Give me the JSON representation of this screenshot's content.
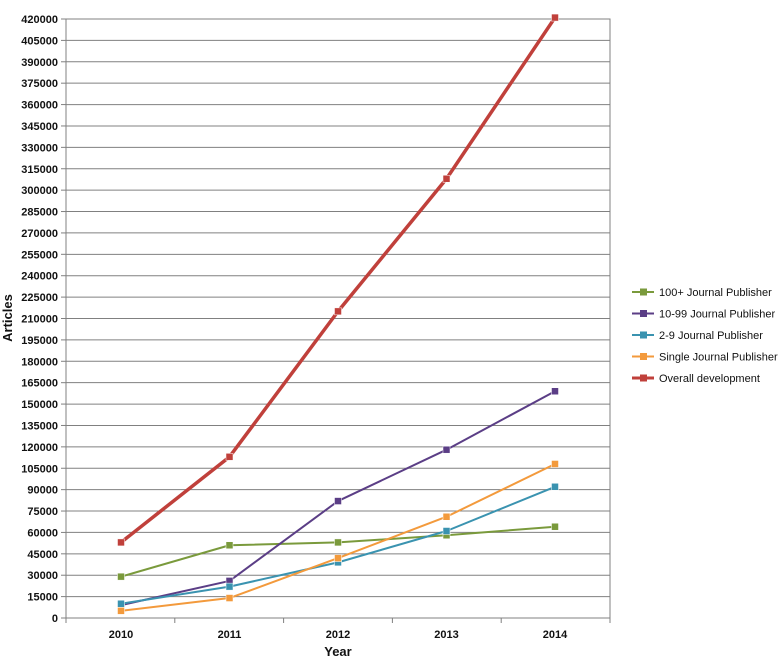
{
  "chart_data": {
    "type": "line",
    "xlabel": "Year",
    "ylabel": "Articles",
    "categories": [
      "2010",
      "2011",
      "2012",
      "2013",
      "2014"
    ],
    "ylim": [
      0,
      420000
    ],
    "ytick_step": 15000,
    "grid": true,
    "legend_position": "right",
    "series": [
      {
        "name": "100+ Journal  Publisher",
        "color": "#7a9a3c",
        "values": [
          29000,
          51000,
          53000,
          58000,
          64000
        ]
      },
      {
        "name": "10-99 Journal  Publisher",
        "color": "#5b3e86",
        "values": [
          9000,
          26000,
          82000,
          118000,
          159000
        ]
      },
      {
        "name": "2-9 Journal  Publisher",
        "color": "#3a93b0",
        "values": [
          10000,
          22000,
          39000,
          61000,
          92000
        ]
      },
      {
        "name": "Single Journal  Publisher",
        "color": "#f39a3c",
        "values": [
          5000,
          14000,
          42000,
          71000,
          108000
        ]
      },
      {
        "name": "Overall development",
        "color": "#c0403b",
        "values": [
          53000,
          113000,
          215000,
          308000,
          421000
        ]
      }
    ]
  }
}
